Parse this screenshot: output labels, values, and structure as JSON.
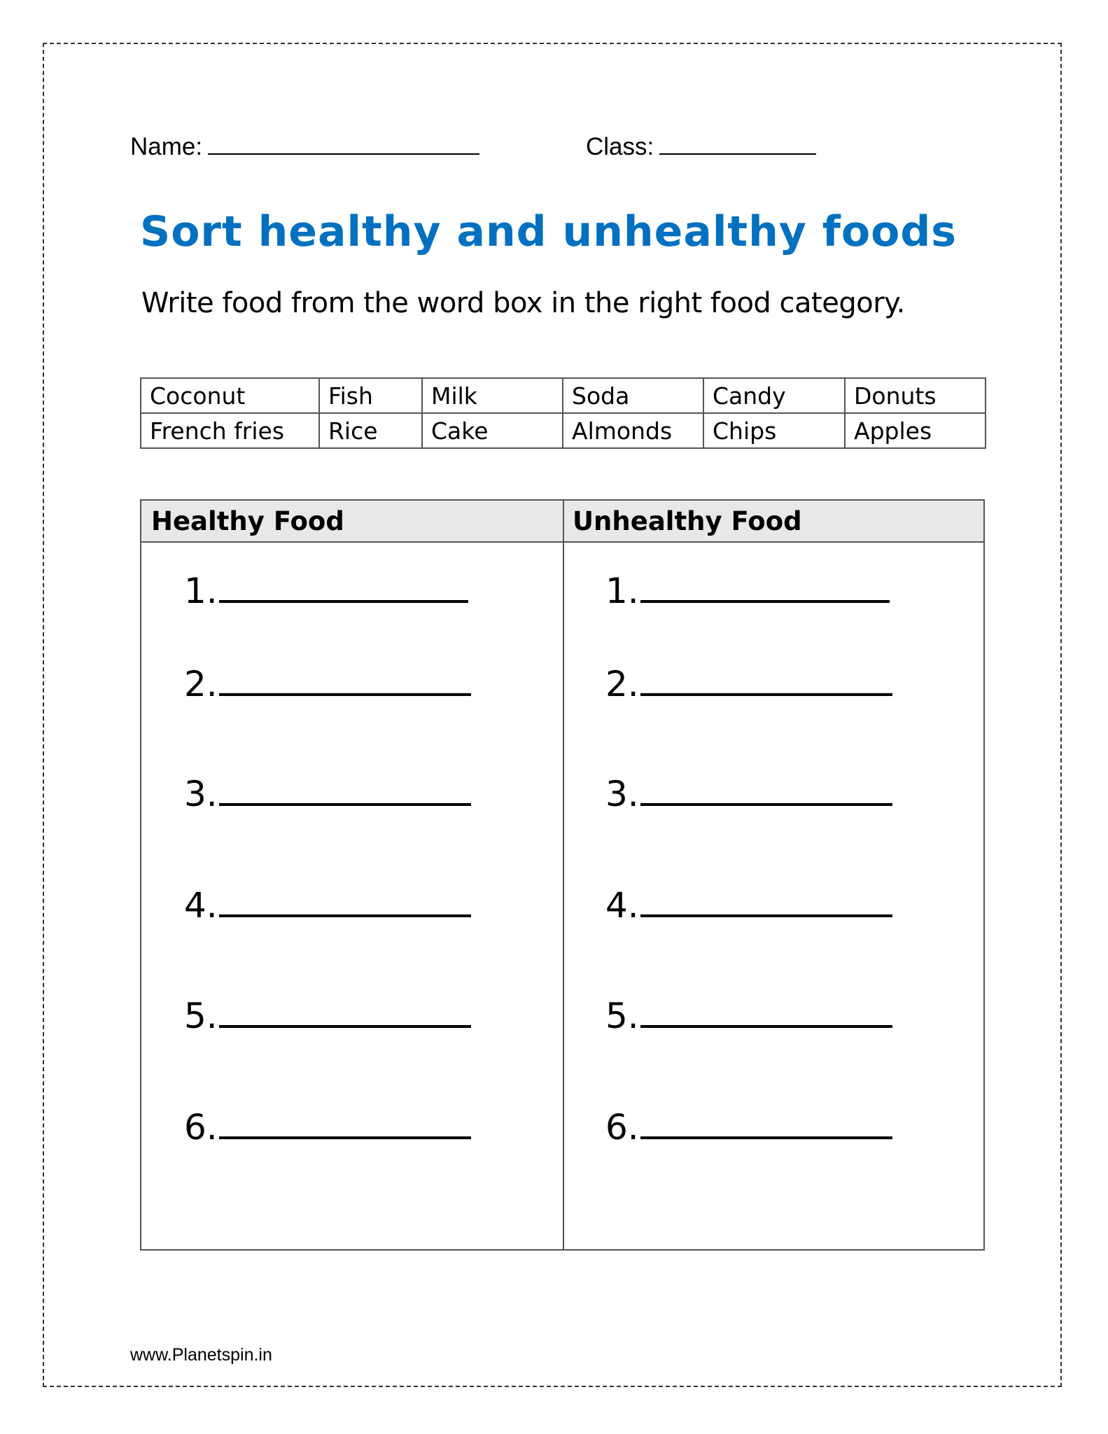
{
  "header": {
    "name_label": "Name:",
    "class_label": "Class:"
  },
  "title": "Sort healthy and unhealthy foods",
  "instruction": "Write food from the word box in the right food category.",
  "word_box": [
    [
      "Coconut",
      "Fish",
      "Milk",
      "Soda",
      "Candy",
      "Donuts"
    ],
    [
      "French fries",
      "Rice",
      "Cake",
      "Almonds",
      "Chips",
      "Apples"
    ]
  ],
  "sort_table": {
    "healthy_header": "Healthy Food",
    "unhealthy_header": "Unhealthy Food",
    "numbers": [
      "1.",
      "2.",
      "3.",
      "4.",
      "5.",
      "6."
    ]
  },
  "footer": "www.Planetspin.in",
  "colors": {
    "title": "#0070C0",
    "header_bg": "#E8E8E8"
  }
}
